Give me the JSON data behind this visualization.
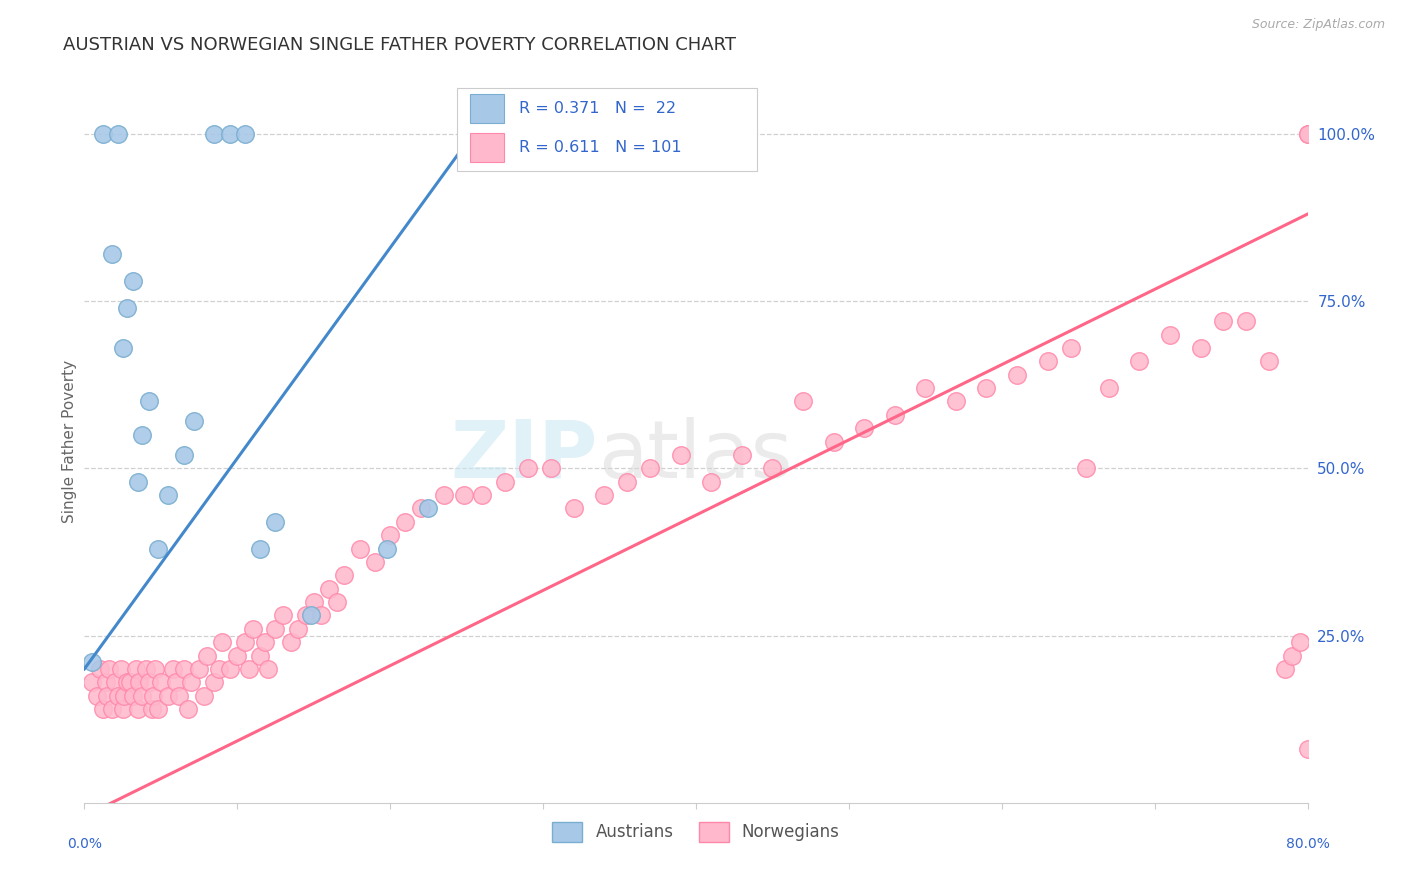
{
  "title": "AUSTRIAN VS NORWEGIAN SINGLE FATHER POVERTY CORRELATION CHART",
  "source": "Source: ZipAtlas.com",
  "ylabel": "Single Father Poverty",
  "xmin": 0.0,
  "xmax": 0.8,
  "ymin": 0.0,
  "ymax": 1.08,
  "grid_yticks": [
    0.25,
    0.5,
    0.75,
    1.0
  ],
  "right_yticklabels": [
    "25.0%",
    "50.0%",
    "75.0%",
    "100.0%"
  ],
  "xticks": [
    0.0,
    0.1,
    0.2,
    0.3,
    0.4,
    0.5,
    0.6,
    0.7,
    0.8
  ],
  "xticklabels": [
    "0.0%",
    "",
    "",
    "",
    "",
    "",
    "",
    "",
    "80.0%"
  ],
  "grid_color": "#d0d0d0",
  "background_color": "#ffffff",
  "blue_scatter_face": "#a8c8e8",
  "blue_scatter_edge": "#7aaed0",
  "pink_scatter_face": "#ffb8cc",
  "pink_scatter_edge": "#ff88aa",
  "blue_line_color": "#4488cc",
  "pink_line_color": "#ff6688",
  "text_color_blue": "#3366cc",
  "text_color_gray": "#888888",
  "legend_label_blue": "Austrians",
  "legend_label_pink": "Norwegians",
  "legend_r_blue": "R = 0.371",
  "legend_n_blue": "N =  22",
  "legend_r_pink": "R = 0.611",
  "legend_n_pink": "N = 101",
  "aus_x": [
    0.005,
    0.012,
    0.018,
    0.022,
    0.025,
    0.028,
    0.032,
    0.035,
    0.038,
    0.042,
    0.048,
    0.055,
    0.065,
    0.072,
    0.085,
    0.095,
    0.105,
    0.115,
    0.125,
    0.148,
    0.198,
    0.225
  ],
  "aus_y": [
    0.21,
    1.0,
    0.82,
    1.0,
    0.68,
    0.74,
    0.78,
    0.48,
    0.55,
    0.6,
    0.38,
    0.46,
    0.52,
    0.57,
    1.0,
    1.0,
    1.0,
    0.38,
    0.42,
    0.28,
    0.38,
    0.44
  ],
  "nor_x": [
    0.005,
    0.008,
    0.01,
    0.012,
    0.014,
    0.015,
    0.016,
    0.018,
    0.02,
    0.022,
    0.024,
    0.025,
    0.026,
    0.028,
    0.03,
    0.032,
    0.034,
    0.035,
    0.036,
    0.038,
    0.04,
    0.042,
    0.044,
    0.045,
    0.046,
    0.048,
    0.05,
    0.055,
    0.058,
    0.06,
    0.062,
    0.065,
    0.068,
    0.07,
    0.075,
    0.078,
    0.08,
    0.085,
    0.088,
    0.09,
    0.095,
    0.1,
    0.105,
    0.108,
    0.11,
    0.115,
    0.118,
    0.12,
    0.125,
    0.13,
    0.135,
    0.14,
    0.145,
    0.15,
    0.155,
    0.16,
    0.165,
    0.17,
    0.18,
    0.19,
    0.2,
    0.21,
    0.22,
    0.235,
    0.248,
    0.26,
    0.275,
    0.29,
    0.305,
    0.32,
    0.34,
    0.355,
    0.37,
    0.39,
    0.41,
    0.43,
    0.45,
    0.47,
    0.49,
    0.51,
    0.53,
    0.55,
    0.57,
    0.59,
    0.61,
    0.63,
    0.645,
    0.655,
    0.67,
    0.69,
    0.71,
    0.73,
    0.745,
    0.76,
    0.775,
    0.785,
    0.79,
    0.795,
    0.8,
    0.8,
    0.8
  ],
  "nor_y": [
    0.18,
    0.16,
    0.2,
    0.14,
    0.18,
    0.16,
    0.2,
    0.14,
    0.18,
    0.16,
    0.2,
    0.14,
    0.16,
    0.18,
    0.18,
    0.16,
    0.2,
    0.14,
    0.18,
    0.16,
    0.2,
    0.18,
    0.14,
    0.16,
    0.2,
    0.14,
    0.18,
    0.16,
    0.2,
    0.18,
    0.16,
    0.2,
    0.14,
    0.18,
    0.2,
    0.16,
    0.22,
    0.18,
    0.2,
    0.24,
    0.2,
    0.22,
    0.24,
    0.2,
    0.26,
    0.22,
    0.24,
    0.2,
    0.26,
    0.28,
    0.24,
    0.26,
    0.28,
    0.3,
    0.28,
    0.32,
    0.3,
    0.34,
    0.38,
    0.36,
    0.4,
    0.42,
    0.44,
    0.46,
    0.46,
    0.46,
    0.48,
    0.5,
    0.5,
    0.44,
    0.46,
    0.48,
    0.5,
    0.52,
    0.48,
    0.52,
    0.5,
    0.6,
    0.54,
    0.56,
    0.58,
    0.62,
    0.6,
    0.62,
    0.64,
    0.66,
    0.68,
    0.5,
    0.62,
    0.66,
    0.7,
    0.68,
    0.72,
    0.72,
    0.66,
    0.2,
    0.22,
    0.24,
    0.08,
    1.0,
    1.0
  ]
}
